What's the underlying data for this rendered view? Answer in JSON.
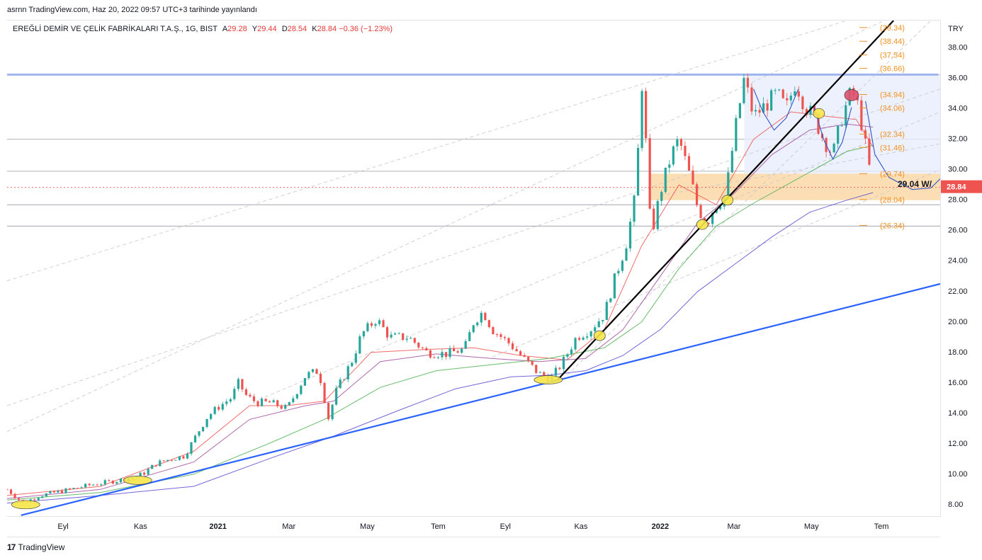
{
  "header": {
    "credit": "asrnn TradingView.com, Haz 20, 2022 09:57 UTC+3 tarihinde yayınlandı"
  },
  "legend": {
    "symbol": "EREĞLİ DEMİR VE ÇELİK FABRİKALARI T.A.Ş., 1G, BIST",
    "open_label": "A",
    "open": "29.28",
    "high_label": "Y",
    "high": "29.44",
    "low_label": "D",
    "low": "28.54",
    "close_label": "K",
    "close": "28.84",
    "change": "−0.36 (−1.23%)"
  },
  "footer": {
    "brand": "TradingView"
  },
  "colors": {
    "up": "#26a69a",
    "down": "#ef5350",
    "fib": "#f29120",
    "support": "#2962ff",
    "trend": "#000000",
    "zone": "#fcd8a8",
    "box": "#e8eefc",
    "ma_fast": "#ef5350",
    "ma_mid": "#a04b9b",
    "ma_long": "#4caf50",
    "ma_slow": "#5b4bd1"
  },
  "chart_data": {
    "type": "candlestick",
    "currency": "TRY",
    "ylim": [
      7.2,
      39.8
    ],
    "y_ticks": [
      "8.00",
      "10.00",
      "12.00",
      "14.00",
      "16.00",
      "18.00",
      "20.00",
      "22.00",
      "24.00",
      "26.00",
      "28.00",
      "30.00",
      "32.00",
      "34.00",
      "36.00",
      "38.00"
    ],
    "x_ticks": [
      {
        "t": 0.06,
        "label": "Eyl"
      },
      {
        "t": 0.143,
        "label": "Kas"
      },
      {
        "t": 0.226,
        "label": "2021",
        "bold": true
      },
      {
        "t": 0.302,
        "label": "Mar"
      },
      {
        "t": 0.386,
        "label": "May"
      },
      {
        "t": 0.462,
        "label": "Tem"
      },
      {
        "t": 0.534,
        "label": "Eyl"
      },
      {
        "t": 0.615,
        "label": "Kas"
      },
      {
        "t": 0.7,
        "label": "2022",
        "bold": true
      },
      {
        "t": 0.779,
        "label": "Mar"
      },
      {
        "t": 0.862,
        "label": "May"
      },
      {
        "t": 0.937,
        "label": "Tem"
      }
    ],
    "price_path": [
      [
        0.0,
        9.0
      ],
      [
        0.017,
        8.1
      ],
      [
        0.035,
        8.6
      ],
      [
        0.06,
        8.9
      ],
      [
        0.09,
        9.3
      ],
      [
        0.12,
        9.6
      ],
      [
        0.145,
        10.0
      ],
      [
        0.16,
        10.7
      ],
      [
        0.175,
        11.0
      ],
      [
        0.19,
        11.2
      ],
      [
        0.205,
        12.8
      ],
      [
        0.215,
        13.8
      ],
      [
        0.226,
        14.4
      ],
      [
        0.24,
        15.0
      ],
      [
        0.248,
        16.0
      ],
      [
        0.257,
        15.1
      ],
      [
        0.268,
        14.7
      ],
      [
        0.282,
        14.7
      ],
      [
        0.3,
        14.3
      ],
      [
        0.32,
        16.5
      ],
      [
        0.334,
        16.8
      ],
      [
        0.34,
        15.0
      ],
      [
        0.344,
        13.6
      ],
      [
        0.353,
        15.5
      ],
      [
        0.37,
        17.5
      ],
      [
        0.38,
        19.2
      ],
      [
        0.396,
        20.2
      ],
      [
        0.41,
        19.0
      ],
      [
        0.43,
        19.0
      ],
      [
        0.45,
        18.0
      ],
      [
        0.47,
        17.9
      ],
      [
        0.49,
        18.2
      ],
      [
        0.5,
        20.0
      ],
      [
        0.51,
        20.7
      ],
      [
        0.52,
        19.5
      ],
      [
        0.54,
        18.5
      ],
      [
        0.555,
        17.5
      ],
      [
        0.57,
        16.6
      ],
      [
        0.583,
        16.3
      ],
      [
        0.595,
        17.3
      ],
      [
        0.61,
        19.0
      ],
      [
        0.625,
        19.5
      ],
      [
        0.64,
        20.5
      ],
      [
        0.652,
        23.0
      ],
      [
        0.663,
        25.0
      ],
      [
        0.674,
        28.5
      ],
      [
        0.68,
        36.0
      ],
      [
        0.686,
        30.5
      ],
      [
        0.69,
        25.5
      ],
      [
        0.7,
        28.5
      ],
      [
        0.712,
        31.0
      ],
      [
        0.72,
        32.0
      ],
      [
        0.732,
        29.5
      ],
      [
        0.74,
        27.5
      ],
      [
        0.75,
        26.5
      ],
      [
        0.758,
        27.6
      ],
      [
        0.77,
        28.3
      ],
      [
        0.78,
        32.5
      ],
      [
        0.79,
        36.0
      ],
      [
        0.8,
        33.5
      ],
      [
        0.812,
        34.2
      ],
      [
        0.825,
        35.0
      ],
      [
        0.835,
        34.0
      ],
      [
        0.845,
        35.8
      ],
      [
        0.855,
        34.2
      ],
      [
        0.865,
        33.4
      ],
      [
        0.875,
        32.0
      ],
      [
        0.885,
        31.0
      ],
      [
        0.895,
        33.5
      ],
      [
        0.905,
        35.2
      ],
      [
        0.913,
        34.0
      ],
      [
        0.92,
        31.5
      ],
      [
        0.925,
        29.8
      ],
      [
        0.928,
        28.84
      ]
    ],
    "moving_averages": [
      {
        "name": "MA-fast",
        "points": [
          [
            0.0,
            8.6
          ],
          [
            0.1,
            9.2
          ],
          [
            0.2,
            11.5
          ],
          [
            0.26,
            14.5
          ],
          [
            0.3,
            14.5
          ],
          [
            0.34,
            14.8
          ],
          [
            0.39,
            18.0
          ],
          [
            0.45,
            18.2
          ],
          [
            0.5,
            18.3
          ],
          [
            0.55,
            17.8
          ],
          [
            0.6,
            17.5
          ],
          [
            0.64,
            19.5
          ],
          [
            0.68,
            25.0
          ],
          [
            0.72,
            29.0
          ],
          [
            0.76,
            27.7
          ],
          [
            0.8,
            32.0
          ],
          [
            0.84,
            33.8
          ],
          [
            0.88,
            33.5
          ],
          [
            0.91,
            33.3
          ],
          [
            0.928,
            31.5
          ]
        ]
      },
      {
        "name": "MA-mid",
        "points": [
          [
            0.0,
            8.4
          ],
          [
            0.1,
            9.0
          ],
          [
            0.2,
            10.8
          ],
          [
            0.26,
            13.6
          ],
          [
            0.32,
            14.5
          ],
          [
            0.35,
            14.8
          ],
          [
            0.4,
            17.4
          ],
          [
            0.46,
            17.9
          ],
          [
            0.52,
            17.6
          ],
          [
            0.57,
            17.4
          ],
          [
            0.62,
            17.6
          ],
          [
            0.66,
            19.5
          ],
          [
            0.7,
            23.0
          ],
          [
            0.74,
            26.5
          ],
          [
            0.78,
            28.5
          ],
          [
            0.82,
            31.0
          ],
          [
            0.86,
            32.6
          ],
          [
            0.9,
            33.0
          ],
          [
            0.928,
            32.8
          ]
        ]
      },
      {
        "name": "MA-long",
        "points": [
          [
            0.0,
            8.3
          ],
          [
            0.1,
            8.8
          ],
          [
            0.2,
            10.0
          ],
          [
            0.28,
            12.0
          ],
          [
            0.34,
            13.6
          ],
          [
            0.4,
            15.7
          ],
          [
            0.46,
            16.8
          ],
          [
            0.52,
            17.2
          ],
          [
            0.58,
            17.6
          ],
          [
            0.64,
            18.3
          ],
          [
            0.68,
            20.0
          ],
          [
            0.72,
            23.5
          ],
          [
            0.76,
            26.3
          ],
          [
            0.8,
            27.8
          ],
          [
            0.85,
            29.5
          ],
          [
            0.9,
            31.2
          ],
          [
            0.928,
            31.6
          ]
        ]
      },
      {
        "name": "MA-slow",
        "points": [
          [
            0.0,
            8.1
          ],
          [
            0.1,
            8.6
          ],
          [
            0.2,
            9.2
          ],
          [
            0.28,
            11.0
          ],
          [
            0.35,
            12.5
          ],
          [
            0.42,
            14.2
          ],
          [
            0.48,
            15.6
          ],
          [
            0.54,
            16.4
          ],
          [
            0.58,
            16.5
          ],
          [
            0.62,
            16.8
          ],
          [
            0.66,
            17.8
          ],
          [
            0.7,
            19.5
          ],
          [
            0.74,
            22.0
          ],
          [
            0.78,
            23.8
          ],
          [
            0.82,
            25.6
          ],
          [
            0.86,
            27.2
          ],
          [
            0.9,
            28.0
          ],
          [
            0.928,
            28.5
          ]
        ]
      }
    ],
    "fib_levels": [
      "(39.34)",
      "(38.44)",
      "(37.54)",
      "(36.66)",
      "(34.94)",
      "(34.06)",
      "(32.34)",
      "(31.46)",
      "(29.74)",
      "(28.04)",
      "(26.34)"
    ],
    "fib_values": [
      39.34,
      38.44,
      37.54,
      36.66,
      34.94,
      34.06,
      32.34,
      31.46,
      29.74,
      28.04,
      26.34
    ],
    "horizontal_levels": [
      36.25,
      32.0,
      29.9,
      27.7,
      26.3
    ],
    "resistance_level": 36.25,
    "support_zone": [
      28.0,
      29.74
    ],
    "range_box": [
      29.74,
      36.25
    ],
    "last_price": "28.84",
    "annotation": "29.04 W/",
    "markers": [
      {
        "t": 0.02,
        "y": 8.0
      },
      {
        "t": 0.14,
        "y": 9.6
      },
      {
        "t": 0.58,
        "y": 16.2
      },
      {
        "t": 0.635,
        "y": 19.1
      },
      {
        "t": 0.745,
        "y": 26.4
      },
      {
        "t": 0.772,
        "y": 28.0
      },
      {
        "t": 0.87,
        "y": 33.7
      }
    ],
    "support_line": [
      [
        0.015,
        7.3
      ],
      [
        1.0,
        22.5
      ]
    ],
    "trend_line": [
      [
        0.59,
        16.2
      ],
      [
        0.95,
        39.8
      ]
    ]
  }
}
